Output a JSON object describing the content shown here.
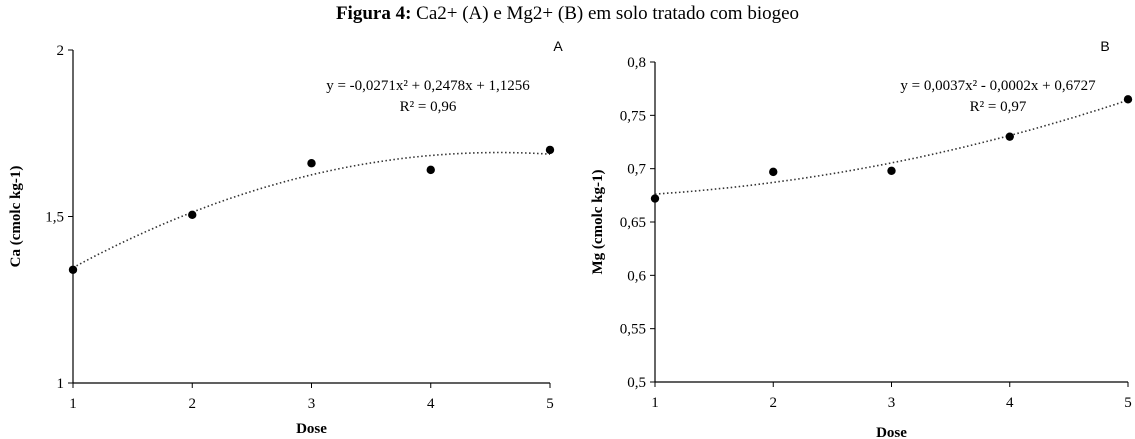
{
  "figure": {
    "title_bold": "Figura 4:",
    "title_rest": " Ca2+ (A) e Mg2+ (B) em solo tratado com biogeo"
  },
  "chart_data": [
    {
      "type": "scatter",
      "panel_label": "A",
      "x": [
        1,
        2,
        3,
        4,
        5
      ],
      "values": [
        1.34,
        1.505,
        1.66,
        1.64,
        1.7
      ],
      "xlabel": "Dose",
      "ylabel": "Ca (cmolc kg-1)",
      "xlim": [
        1,
        5
      ],
      "ylim": [
        1,
        2
      ],
      "x_ticks": [
        {
          "v": 1,
          "label": "1"
        },
        {
          "v": 2,
          "label": "2"
        },
        {
          "v": 3,
          "label": "3"
        },
        {
          "v": 4,
          "label": "4"
        },
        {
          "v": 5,
          "label": "5"
        }
      ],
      "y_ticks": [
        {
          "v": 1,
          "label": "1"
        },
        {
          "v": 1.5,
          "label": "1,5"
        },
        {
          "v": 2,
          "label": "2"
        }
      ],
      "trendline": {
        "kind": "polynomial",
        "coefficients": [
          -0.0271,
          0.2478,
          1.1256
        ]
      },
      "equation": "y = -0,0271x² + 0,2478x + 1,1256",
      "r2": "R² = 0,96",
      "grid": false
    },
    {
      "type": "scatter",
      "panel_label": "B",
      "x": [
        1,
        2,
        3,
        4,
        5
      ],
      "values": [
        0.672,
        0.697,
        0.698,
        0.73,
        0.765
      ],
      "xlabel": "Dose",
      "ylabel": "Mg (cmolc kg-1)",
      "xlim": [
        1,
        5
      ],
      "ylim": [
        0.5,
        0.8
      ],
      "x_ticks": [
        {
          "v": 1,
          "label": "1"
        },
        {
          "v": 2,
          "label": "2"
        },
        {
          "v": 3,
          "label": "3"
        },
        {
          "v": 4,
          "label": "4"
        },
        {
          "v": 5,
          "label": "5"
        }
      ],
      "y_ticks": [
        {
          "v": 0.5,
          "label": "0,5"
        },
        {
          "v": 0.55,
          "label": "0,55"
        },
        {
          "v": 0.6,
          "label": "0,6"
        },
        {
          "v": 0.65,
          "label": "0,65"
        },
        {
          "v": 0.7,
          "label": "0,7"
        },
        {
          "v": 0.75,
          "label": "0,75"
        },
        {
          "v": 0.8,
          "label": "0,8"
        }
      ],
      "trendline": {
        "kind": "polynomial",
        "coefficients": [
          0.0037,
          -0.0002,
          0.6727
        ]
      },
      "equation": "y = 0,0037x² - 0,0002x + 0,6727",
      "r2": "R² = 0,97",
      "grid": false
    }
  ]
}
